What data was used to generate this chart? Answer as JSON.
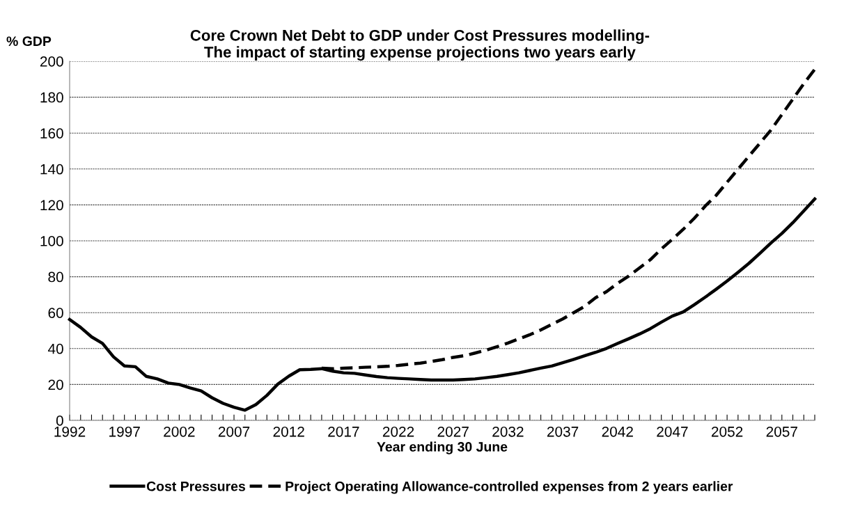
{
  "chart_data": {
    "type": "line",
    "title": "Core Crown Net Debt to GDP under Cost Pressures modelling-\nThe impact of starting expense projections two years early",
    "ylabel": "% GDP",
    "xlabel": "Year ending 30 June",
    "xlim": [
      1992,
      2060
    ],
    "ylim": [
      0,
      200
    ],
    "yticks": [
      0,
      20,
      40,
      60,
      80,
      100,
      120,
      140,
      160,
      180,
      200
    ],
    "xticks": [
      1992,
      {
        "value": 1993,
        "label": null
      },
      {
        "value": 1994,
        "label": null
      },
      {
        "value": 1995,
        "label": null
      },
      {
        "value": 1996,
        "label": null
      },
      1997,
      {
        "value": 1998,
        "label": null
      },
      {
        "value": 1999,
        "label": null
      },
      {
        "value": 2000,
        "label": null
      },
      {
        "value": 2001,
        "label": null
      },
      2002,
      {
        "value": 2003,
        "label": null
      },
      {
        "value": 2004,
        "label": null
      },
      {
        "value": 2005,
        "label": null
      },
      {
        "value": 2006,
        "label": null
      },
      2007,
      {
        "value": 2008,
        "label": null
      },
      {
        "value": 2009,
        "label": null
      },
      {
        "value": 2010,
        "label": null
      },
      {
        "value": 2011,
        "label": null
      },
      2012,
      {
        "value": 2013,
        "label": null
      },
      {
        "value": 2014,
        "label": null
      },
      {
        "value": 2015,
        "label": null
      },
      {
        "value": 2016,
        "label": null
      },
      2017,
      {
        "value": 2018,
        "label": null
      },
      {
        "value": 2019,
        "label": null
      },
      {
        "value": 2020,
        "label": null
      },
      {
        "value": 2021,
        "label": null
      },
      2022,
      {
        "value": 2023,
        "label": null
      },
      {
        "value": 2024,
        "label": null
      },
      {
        "value": 2025,
        "label": null
      },
      {
        "value": 2026,
        "label": null
      },
      2027,
      {
        "value": 2028,
        "label": null
      },
      {
        "value": 2029,
        "label": null
      },
      {
        "value": 2030,
        "label": null
      },
      {
        "value": 2031,
        "label": null
      },
      2032,
      {
        "value": 2033,
        "label": null
      },
      {
        "value": 2034,
        "label": null
      },
      {
        "value": 2035,
        "label": null
      },
      {
        "value": 2036,
        "label": null
      },
      2037,
      {
        "value": 2038,
        "label": null
      },
      {
        "value": 2039,
        "label": null
      },
      {
        "value": 2040,
        "label": null
      },
      {
        "value": 2041,
        "label": null
      },
      2042,
      {
        "value": 2043,
        "label": null
      },
      {
        "value": 2044,
        "label": null
      },
      {
        "value": 2045,
        "label": null
      },
      {
        "value": 2046,
        "label": null
      },
      2047,
      {
        "value": 2048,
        "label": null
      },
      {
        "value": 2049,
        "label": null
      },
      {
        "value": 2050,
        "label": null
      },
      {
        "value": 2051,
        "label": null
      },
      2052,
      {
        "value": 2053,
        "label": null
      },
      {
        "value": 2054,
        "label": null
      },
      {
        "value": 2055,
        "label": null
      },
      {
        "value": 2056,
        "label": null
      },
      2057,
      {
        "value": 2058,
        "label": null
      },
      {
        "value": 2059,
        "label": null
      },
      {
        "value": 2060,
        "label": null
      }
    ],
    "grid": "y",
    "legend": "bottom",
    "marker": "none",
    "series": [
      {
        "name": "Cost Pressures",
        "color": "#000000",
        "line_style": "solid",
        "x": [
          1992,
          1993,
          1994,
          1995,
          1996,
          1997,
          1998,
          1999,
          2000,
          2001,
          2002,
          2003,
          2004,
          2005,
          2006,
          2007,
          2008,
          2009,
          2010,
          2011,
          2012,
          2013,
          2014,
          2015,
          2016,
          2017,
          2018,
          2019,
          2020,
          2021,
          2022,
          2023,
          2024,
          2025,
          2026,
          2027,
          2028,
          2029,
          2030,
          2031,
          2032,
          2033,
          2034,
          2035,
          2036,
          2037,
          2038,
          2039,
          2040,
          2041,
          2042,
          2043,
          2044,
          2045,
          2046,
          2047,
          2048,
          2049,
          2050,
          2051,
          2052,
          2053,
          2054,
          2055,
          2056,
          2057,
          2058,
          2059,
          2060
        ],
        "values": [
          56.2,
          51.8,
          46.5,
          42.9,
          35.4,
          30.3,
          29.9,
          24.5,
          23.1,
          20.8,
          20.0,
          18.1,
          16.4,
          12.6,
          9.5,
          7.3,
          5.7,
          8.8,
          13.9,
          20.2,
          24.6,
          28.2,
          28.4,
          28.8,
          27.4,
          26.5,
          26.2,
          25.3,
          24.4,
          23.8,
          23.4,
          23.1,
          22.8,
          22.5,
          22.5,
          22.5,
          22.8,
          23.1,
          23.8,
          24.5,
          25.5,
          26.5,
          27.8,
          29.1,
          30.3,
          32.1,
          34.0,
          36.0,
          37.9,
          40.1,
          42.8,
          45.4,
          48.1,
          51.1,
          54.7,
          58.1,
          60.4,
          64.4,
          68.6,
          73.0,
          77.6,
          82.5,
          87.5,
          93.1,
          98.8,
          104.1,
          110.1,
          116.7,
          123.3
        ]
      },
      {
        "name": "Project Operating Allowance-controlled expenses from 2 years earlier",
        "color": "#000000",
        "line_style": "dashed",
        "x": [
          2015,
          2016,
          2017,
          2018,
          2019,
          2020,
          2021,
          2022,
          2023,
          2024,
          2025,
          2026,
          2027,
          2028,
          2029,
          2030,
          2031,
          2032,
          2033,
          2034,
          2035,
          2036,
          2037,
          2038,
          2039,
          2040,
          2041,
          2042,
          2043,
          2044,
          2045,
          2046,
          2047,
          2048,
          2049,
          2050,
          2051,
          2052,
          2053,
          2054,
          2055,
          2056,
          2057,
          2058,
          2059,
          2060
        ],
        "values": [
          29.1,
          28.8,
          29.1,
          29.3,
          29.6,
          29.8,
          30.1,
          30.6,
          31.3,
          31.9,
          32.8,
          33.8,
          35.1,
          36.0,
          37.5,
          39.1,
          41.0,
          43.1,
          45.4,
          47.7,
          50.4,
          53.5,
          56.5,
          60.0,
          63.5,
          68.3,
          71.7,
          76.3,
          80.3,
          84.9,
          89.5,
          95.5,
          100.8,
          106.4,
          112.5,
          119.3,
          125.3,
          132.6,
          139.9,
          147.2,
          154.4,
          161.7,
          170.3,
          178.9,
          187.5,
          195.5
        ]
      }
    ]
  }
}
